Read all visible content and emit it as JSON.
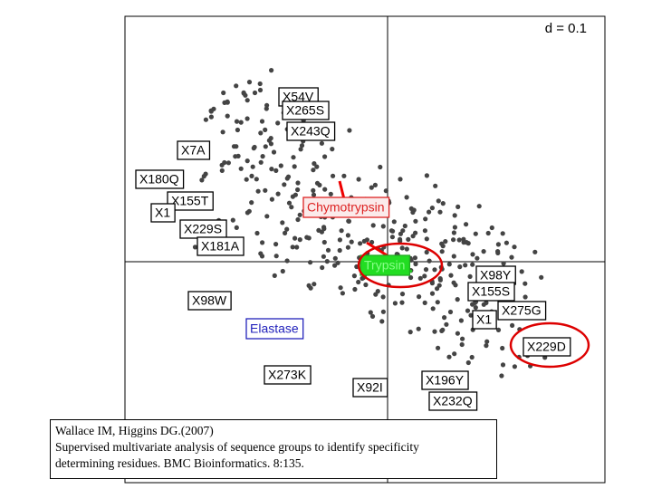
{
  "scale_label": "d = 0.1",
  "groups": [
    {
      "text": "Chymotrypsin"
    },
    {
      "text": "Trypsin"
    },
    {
      "text": "Elastase"
    }
  ],
  "labels": [
    "X54V",
    "X265S",
    "X243Q",
    "X7A",
    "X180Q",
    "X155T",
    "X1",
    "X229S",
    "X181A",
    "X98W",
    "X273K",
    "X92I",
    "X196Y",
    "X232Q",
    "X98Y",
    "X155S",
    "X275G",
    "X1",
    "X229D"
  ],
  "citation": [
    "Wallace IM, Higgins DG.(2007)",
    "Supervised multivariate analysis of sequence groups to identify specificity",
    "determining residues. BMC Bioinformatics. 8:135."
  ]
}
